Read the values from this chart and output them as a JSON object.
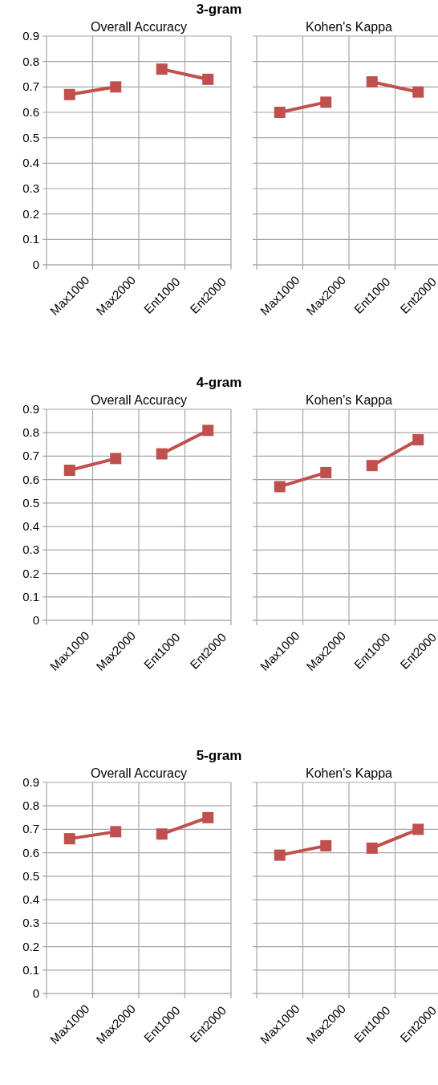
{
  "chart_data": [
    {
      "type": "line",
      "title": "3-gram",
      "subtitle": "Overall Accuracy",
      "categories": [
        "Max1000",
        "Max2000",
        "Ent1000",
        "Ent2000"
      ],
      "ylim": [
        0,
        0.9
      ],
      "yticks": [
        0,
        0.1,
        0.2,
        0.3,
        0.4,
        0.5,
        0.6,
        0.7,
        0.8,
        0.9
      ],
      "grid": true,
      "marker": "square",
      "series": [
        {
          "color": "#c0504d",
          "values": [
            0.67,
            0.7,
            null,
            null
          ]
        },
        {
          "color": "#c0504d",
          "values": [
            null,
            null,
            0.77,
            0.73
          ]
        }
      ]
    },
    {
      "type": "line",
      "subtitle": "Kohen's Kappa",
      "categories": [
        "Max1000",
        "Max2000",
        "Ent1000",
        "Ent2000"
      ],
      "ylim": [
        0,
        0.9
      ],
      "yticks": [
        0,
        0.1,
        0.2,
        0.3,
        0.4,
        0.5,
        0.6,
        0.7,
        0.8,
        0.9
      ],
      "grid": true,
      "marker": "square",
      "tick_labels": "x",
      "series": [
        {
          "color": "#c0504d",
          "values": [
            0.6,
            0.64,
            null,
            null
          ]
        },
        {
          "color": "#c0504d",
          "values": [
            null,
            null,
            0.72,
            0.68
          ]
        }
      ]
    },
    {
      "type": "line",
      "title": "4-gram",
      "subtitle": "Overall Accuracy",
      "categories": [
        "Max1000",
        "Max2000",
        "Ent1000",
        "Ent2000"
      ],
      "ylim": [
        0,
        0.9
      ],
      "yticks": [
        0,
        0.1,
        0.2,
        0.3,
        0.4,
        0.5,
        0.6,
        0.7,
        0.8,
        0.9
      ],
      "grid": true,
      "marker": "square",
      "series": [
        {
          "color": "#c0504d",
          "values": [
            0.64,
            0.69,
            null,
            null
          ]
        },
        {
          "color": "#c0504d",
          "values": [
            null,
            null,
            0.71,
            0.81
          ]
        }
      ]
    },
    {
      "type": "line",
      "subtitle": "Kohen's Kappa",
      "categories": [
        "Max1000",
        "Max2000",
        "Ent1000",
        "Ent2000"
      ],
      "ylim": [
        0,
        0.9
      ],
      "yticks": [
        0,
        0.1,
        0.2,
        0.3,
        0.4,
        0.5,
        0.6,
        0.7,
        0.8,
        0.9
      ],
      "grid": true,
      "marker": "square",
      "tick_labels": "x",
      "series": [
        {
          "color": "#c0504d",
          "values": [
            0.57,
            0.63,
            null,
            null
          ]
        },
        {
          "color": "#c0504d",
          "values": [
            null,
            null,
            0.66,
            0.77
          ]
        }
      ]
    },
    {
      "type": "line",
      "title": "5-gram",
      "subtitle": "Overall Accuracy",
      "categories": [
        "Max1000",
        "Max2000",
        "Ent1000",
        "Ent2000"
      ],
      "ylim": [
        0,
        0.9
      ],
      "yticks": [
        0,
        0.1,
        0.2,
        0.3,
        0.4,
        0.5,
        0.6,
        0.7,
        0.8,
        0.9
      ],
      "grid": true,
      "marker": "square",
      "series": [
        {
          "color": "#c0504d",
          "values": [
            0.66,
            0.69,
            null,
            null
          ]
        },
        {
          "color": "#c0504d",
          "values": [
            null,
            null,
            0.68,
            0.75
          ]
        }
      ]
    },
    {
      "type": "line",
      "subtitle": "Kohen's Kappa",
      "categories": [
        "Max1000",
        "Max2000",
        "Ent1000",
        "Ent2000"
      ],
      "ylim": [
        0,
        0.9
      ],
      "yticks": [
        0,
        0.1,
        0.2,
        0.3,
        0.4,
        0.5,
        0.6,
        0.7,
        0.8,
        0.9
      ],
      "grid": true,
      "marker": "square",
      "tick_labels": "x",
      "series": [
        {
          "color": "#c0504d",
          "values": [
            0.59,
            0.63,
            null,
            null
          ]
        },
        {
          "color": "#c0504d",
          "values": [
            null,
            null,
            0.62,
            0.7
          ]
        }
      ]
    }
  ]
}
